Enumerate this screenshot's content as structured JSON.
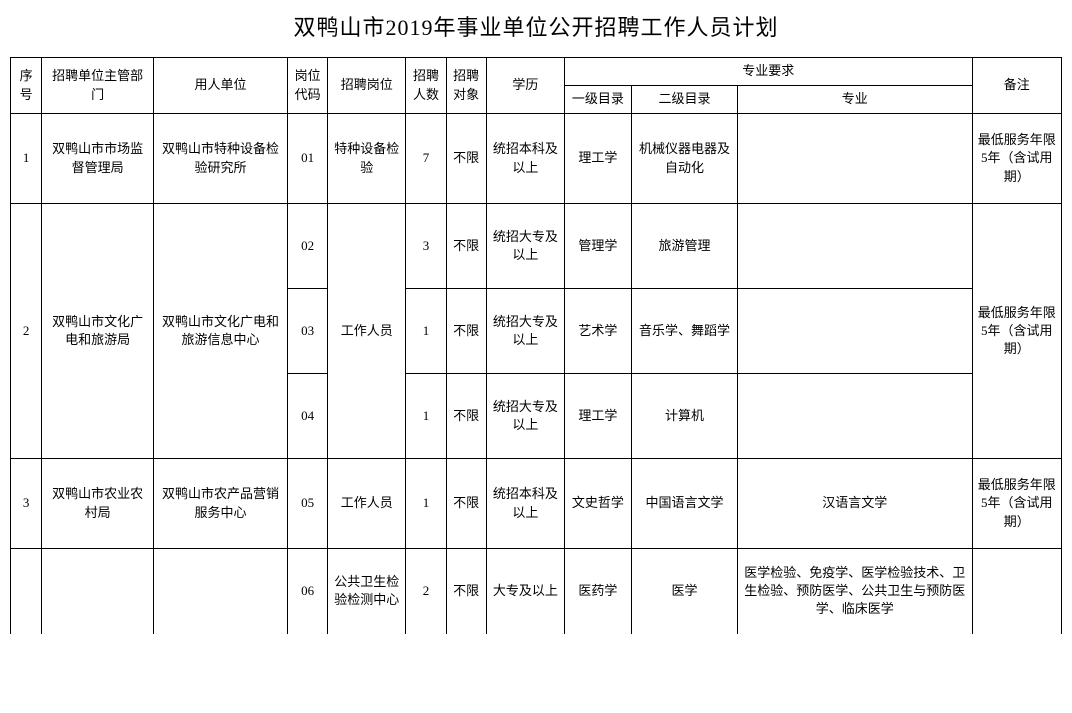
{
  "title": "双鸭山市2019年事业单位公开招聘工作人员计划",
  "headers": {
    "seq": "序号",
    "dept": "招聘单位主管部门",
    "unit": "用人单位",
    "code": "岗位代码",
    "position": "招聘岗位",
    "num": "招聘人数",
    "target": "招聘对象",
    "edu": "学历",
    "req_group": "专业要求",
    "cat1": "一级目录",
    "cat2": "二级目录",
    "major": "专业",
    "note": "备注"
  },
  "rows": [
    {
      "seq": "1",
      "dept": "双鸭山市市场监督管理局",
      "unit": "双鸭山市特种设备检验研究所",
      "code": "01",
      "position": "特种设备检验",
      "num": "7",
      "target": "不限",
      "edu": "统招本科及以上",
      "cat1": "理工学",
      "cat2": "机械仪器电器及自动化",
      "major": "",
      "note": "最低服务年限5年（含试用期）"
    },
    {
      "seq": "2",
      "dept": "双鸭山市文化广电和旅游局",
      "unit": "双鸭山市文化广电和旅游信息中心",
      "code": "02",
      "position": "工作人员",
      "num": "3",
      "target": "不限",
      "edu": "统招大专及以上",
      "cat1": "管理学",
      "cat2": "旅游管理",
      "major": "",
      "note": "最低服务年限5年（含试用期）"
    },
    {
      "code": "03",
      "num": "1",
      "target": "不限",
      "edu": "统招大专及以上",
      "cat1": "艺术学",
      "cat2": "音乐学、舞蹈学",
      "major": ""
    },
    {
      "code": "04",
      "num": "1",
      "target": "不限",
      "edu": "统招大专及以上",
      "cat1": "理工学",
      "cat2": "计算机",
      "major": ""
    },
    {
      "seq": "3",
      "dept": "双鸭山市农业农村局",
      "unit": "双鸭山市农产品营销服务中心",
      "code": "05",
      "position": "工作人员",
      "num": "1",
      "target": "不限",
      "edu": "统招本科及以上",
      "cat1": "文史哲学",
      "cat2": "中国语言文学",
      "major": "汉语言文学",
      "note": "最低服务年限5年（含试用期）"
    },
    {
      "code": "06",
      "position": "公共卫生检验检测中心",
      "num": "2",
      "target": "不限",
      "edu": "大专及以上",
      "cat1": "医药学",
      "cat2": "医学",
      "major": "医学检验、免疫学、医学检验技术、卫生检验、预防医学、公共卫生与预防医学、临床医学"
    }
  ]
}
